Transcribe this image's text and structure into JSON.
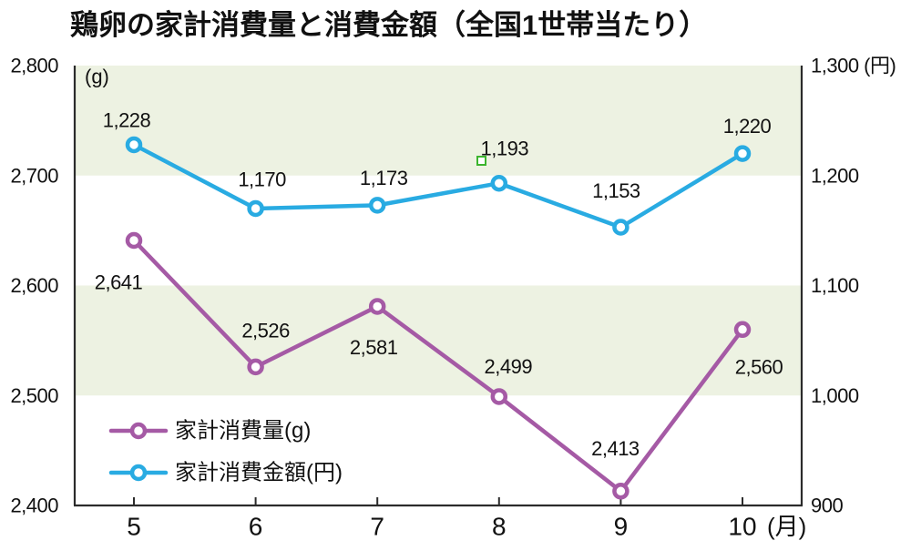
{
  "title": "鶏卵の家計消費量と消費金額（全国1世帯当たり）",
  "chart_data": {
    "type": "line",
    "title": "鶏卵の家計消費量と消費金額（全国1世帯当たり）",
    "categories": [
      "5",
      "6",
      "7",
      "8",
      "9",
      "10"
    ],
    "x_axis_unit": "(月)",
    "series": [
      {
        "name": "家計消費量(g)",
        "axis": "left",
        "color": "#a55aa5",
        "values": [
          2641,
          2526,
          2581,
          2499,
          2413,
          2560
        ],
        "value_labels": [
          "2,641",
          "2,526",
          "2,581",
          "2,499",
          "2,413",
          "2,560"
        ]
      },
      {
        "name": "家計消費金額(円)",
        "axis": "right",
        "color": "#29abe2",
        "values": [
          1228,
          1170,
          1173,
          1193,
          1153,
          1220
        ],
        "value_labels": [
          "1,228",
          "1,170",
          "1,173",
          "1,193",
          "1,153",
          "1,220"
        ]
      }
    ],
    "left_axis": {
      "unit": "(g)",
      "min": 2400,
      "max": 2800,
      "tick_values": [
        2400,
        2500,
        2600,
        2700,
        2800
      ],
      "tick_labels": [
        "2,400",
        "2,500",
        "2,600",
        "2,700",
        "2,800"
      ]
    },
    "right_axis": {
      "unit": "(円)",
      "min": 900,
      "max": 1300,
      "tick_values": [
        900,
        1000,
        1100,
        1200,
        1300
      ],
      "tick_labels": [
        "900",
        "1,000",
        "1,100",
        "1,200",
        "1,300"
      ]
    },
    "legend": {
      "position": "inside-bottom-left",
      "items": [
        "家計消費量(g)",
        "家計消費金額(円)"
      ]
    },
    "grid": false,
    "band_color": "#edf2e2",
    "band_ranges_left_axis": [
      [
        2700,
        2800
      ],
      [
        2500,
        2600
      ]
    ],
    "marker_fill": "#ffffff",
    "axis_color": "#2b2b2b",
    "text_color": "#111111",
    "stray_mark_color": "#3cb52e"
  }
}
